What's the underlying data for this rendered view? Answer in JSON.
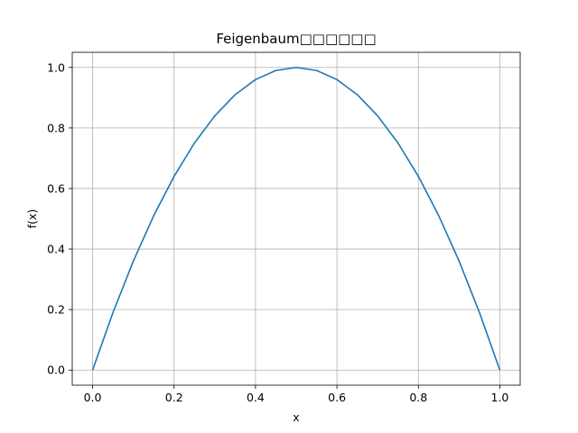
{
  "chart_data": {
    "type": "line",
    "title": "Feigenbaum□□□□□□",
    "xlabel": "x",
    "ylabel": "f(x)",
    "xlim": [
      -0.05,
      1.05
    ],
    "ylim": [
      -0.05,
      1.05
    ],
    "grid": true,
    "xticks": [
      0.0,
      0.2,
      0.4,
      0.6,
      0.8,
      1.0
    ],
    "yticks": [
      0.0,
      0.2,
      0.4,
      0.6,
      0.8,
      1.0
    ],
    "xtick_labels": [
      "0.0",
      "0.2",
      "0.4",
      "0.6",
      "0.8",
      "1.0"
    ],
    "ytick_labels": [
      "0.0",
      "0.2",
      "0.4",
      "0.6",
      "0.8",
      "1.0"
    ],
    "series": [
      {
        "color": "#1f77b4",
        "x": [
          0.0,
          0.05,
          0.1,
          0.15,
          0.2,
          0.25,
          0.3,
          0.35,
          0.4,
          0.45,
          0.5,
          0.55,
          0.6,
          0.65,
          0.7,
          0.75,
          0.8,
          0.85,
          0.9,
          0.95,
          1.0
        ],
        "y": [
          0.0,
          0.19,
          0.36,
          0.51,
          0.64,
          0.75,
          0.84,
          0.91,
          0.96,
          0.99,
          1.0,
          0.99,
          0.96,
          0.91,
          0.84,
          0.75,
          0.64,
          0.51,
          0.36,
          0.19,
          0.0
        ]
      }
    ]
  }
}
